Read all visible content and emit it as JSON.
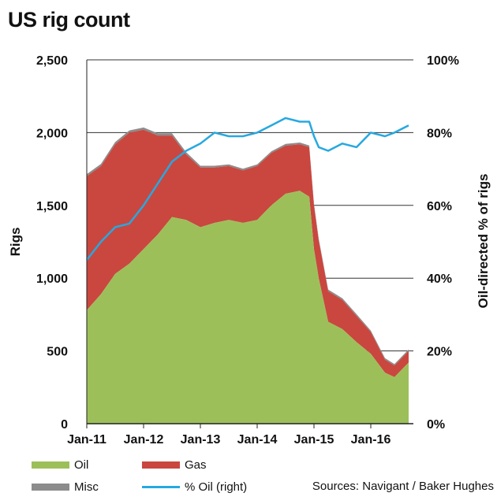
{
  "title": "US rig count",
  "source": "Sources: Navigant / Baker Hughes",
  "colors": {
    "oil": "#9dbf5a",
    "gas": "#c9473f",
    "misc": "#8c8c8c",
    "pct_oil": "#27a8e0",
    "grid": "#333333"
  },
  "chart_data": {
    "type": "area",
    "title": "US rig count",
    "ylabel": "Rigs",
    "ylabel_right": "Oil-directed % of rigs",
    "xlabel": "",
    "ylim": [
      0,
      2500
    ],
    "ylim_right": [
      0,
      100
    ],
    "y_ticks": [
      "0",
      "500",
      "1,000",
      "1,500",
      "2,000",
      "2,500"
    ],
    "y_right_ticks": [
      "0%",
      "20%",
      "40%",
      "60%",
      "80%",
      "100%"
    ],
    "x_ticks": [
      "Jan-11",
      "Jan-12",
      "Jan-13",
      "Jan-14",
      "Jan-15",
      "Jan-16"
    ],
    "x": [
      "2011-01",
      "2011-04",
      "2011-07",
      "2011-10",
      "2012-01",
      "2012-04",
      "2012-07",
      "2012-10",
      "2013-01",
      "2013-04",
      "2013-07",
      "2013-10",
      "2014-01",
      "2014-04",
      "2014-07",
      "2014-10",
      "2014-12",
      "2015-01",
      "2015-02",
      "2015-04",
      "2015-07",
      "2015-10",
      "2016-01",
      "2016-04",
      "2016-06",
      "2016-09"
    ],
    "series": [
      {
        "name": "Oil",
        "kind": "area",
        "axis": "left",
        "values": [
          780,
          890,
          1030,
          1100,
          1200,
          1300,
          1420,
          1400,
          1350,
          1380,
          1400,
          1380,
          1400,
          1500,
          1580,
          1600,
          1560,
          1200,
          1000,
          700,
          650,
          560,
          480,
          350,
          320,
          420
        ]
      },
      {
        "name": "Gas",
        "kind": "area",
        "axis": "left",
        "values": [
          920,
          880,
          890,
          900,
          820,
          680,
          560,
          450,
          410,
          380,
          370,
          360,
          370,
          360,
          330,
          320,
          340,
          300,
          260,
          210,
          200,
          180,
          150,
          90,
          80,
          80
        ]
      },
      {
        "name": "Misc",
        "kind": "area",
        "axis": "left",
        "values": [
          15,
          15,
          15,
          15,
          15,
          15,
          15,
          15,
          12,
          12,
          12,
          12,
          12,
          12,
          12,
          12,
          12,
          12,
          12,
          12,
          12,
          12,
          10,
          10,
          10,
          10
        ]
      },
      {
        "name": "% Oil (right)",
        "kind": "line",
        "axis": "right",
        "values": [
          45,
          50,
          54,
          55,
          60,
          66,
          72,
          75,
          77,
          80,
          79,
          79,
          80,
          82,
          84,
          83,
          83,
          79,
          76,
          75,
          77,
          76,
          80,
          79,
          80,
          82
        ]
      }
    ],
    "legend": {
      "placement": "bottom"
    },
    "grid": true
  },
  "legend_items": [
    {
      "label": "Oil"
    },
    {
      "label": "Gas"
    },
    {
      "label": "Misc"
    },
    {
      "label": "% Oil (right)"
    }
  ]
}
